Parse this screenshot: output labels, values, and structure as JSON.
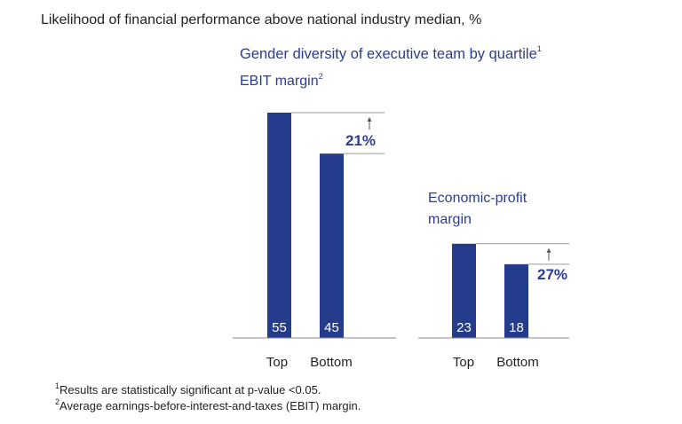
{
  "title": "Likelihood of financial performance above national industry median, %",
  "subtitle": {
    "text": "Gender diversity of executive team by quartile",
    "sup": "1"
  },
  "chart_data": [
    {
      "type": "bar",
      "title": "EBIT margin",
      "title_sup": "2",
      "categories": [
        "Top",
        "Bottom"
      ],
      "values": [
        55,
        45
      ],
      "difference_label": "21%",
      "ylim": [
        0,
        55
      ],
      "color": "#253c8c"
    },
    {
      "type": "bar",
      "title": "Economic-profit margin",
      "title_sup": "",
      "categories": [
        "Top",
        "Bottom"
      ],
      "values": [
        23,
        18
      ],
      "difference_label": "27%",
      "ylim": [
        0,
        55
      ],
      "color": "#253c8c"
    }
  ],
  "footnotes": [
    {
      "sup": "1",
      "text": "Results are statistically significant at p-value <0.05."
    },
    {
      "sup": "2",
      "text": "Average earnings-before-interest-and-taxes (EBIT) margin."
    }
  ],
  "colors": {
    "bar": "#253c8c",
    "accent_text": "#2b3d8f",
    "axis": "#888888"
  }
}
